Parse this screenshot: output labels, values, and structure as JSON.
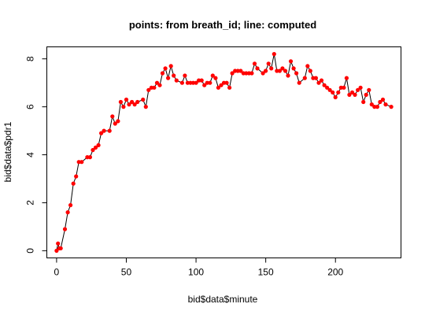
{
  "chart_data": {
    "type": "scatter",
    "title": "points: from breath_id; line: computed",
    "xlabel": "bid$data$minute",
    "ylabel": "bid$data$pdr1",
    "xlim": [
      -7,
      247
    ],
    "ylim": [
      -0.3,
      8.5
    ],
    "xticks": [
      0,
      50,
      100,
      150,
      200
    ],
    "yticks": [
      0,
      2,
      4,
      6,
      8
    ],
    "grid": false,
    "point_color": "#ff0000",
    "line_color": "#000000",
    "series": [
      {
        "style": "points",
        "x": [
          0,
          1,
          2,
          3,
          6,
          8,
          10,
          12,
          14,
          16,
          18,
          22,
          24,
          26,
          28,
          30,
          32,
          34,
          38,
          40,
          42,
          44,
          46,
          48,
          50,
          52,
          54,
          56,
          58,
          62,
          64,
          66,
          68,
          70,
          72,
          74,
          76,
          78,
          80,
          82,
          84,
          86,
          90,
          92,
          94,
          96,
          98,
          100,
          102,
          104,
          106,
          108,
          110,
          112,
          114,
          116,
          118,
          120,
          122,
          124,
          126,
          128,
          130,
          132,
          134,
          136,
          138,
          140,
          142,
          144,
          148,
          150,
          152,
          154,
          156,
          158,
          160,
          162,
          164,
          166,
          168,
          170,
          172,
          174,
          178,
          180,
          182,
          184,
          186,
          188,
          190,
          192,
          194,
          196,
          198,
          200,
          202,
          204,
          206,
          208,
          210,
          212,
          214,
          216,
          218,
          220,
          222,
          224,
          226,
          228,
          230,
          232,
          234,
          236,
          240
        ],
        "y": [
          0.0,
          0.3,
          0.1,
          0.1,
          0.9,
          1.6,
          1.9,
          2.8,
          3.1,
          3.7,
          3.7,
          3.9,
          3.9,
          4.2,
          4.3,
          4.4,
          4.9,
          5.0,
          5.0,
          5.6,
          5.3,
          5.4,
          6.2,
          6.0,
          6.3,
          6.1,
          6.2,
          6.1,
          6.2,
          6.3,
          6.0,
          6.7,
          6.8,
          6.8,
          7.0,
          6.9,
          7.4,
          7.6,
          7.2,
          7.7,
          7.3,
          7.1,
          7.0,
          7.3,
          7.0,
          7.0,
          7.0,
          7.0,
          7.1,
          7.1,
          6.9,
          7.0,
          7.0,
          7.3,
          7.2,
          6.8,
          6.9,
          7.0,
          7.0,
          6.8,
          7.4,
          7.5,
          7.5,
          7.5,
          7.4,
          7.4,
          7.4,
          7.4,
          7.8,
          7.6,
          7.4,
          7.5,
          7.8,
          7.6,
          8.2,
          7.5,
          7.5,
          7.6,
          7.5,
          7.3,
          7.9,
          7.6,
          7.4,
          7.0,
          7.2,
          7.7,
          7.5,
          7.2,
          7.2,
          7.0,
          7.1,
          6.9,
          6.8,
          6.7,
          6.6,
          6.4,
          6.6,
          6.8,
          6.8,
          7.2,
          6.5,
          6.6,
          6.5,
          6.7,
          6.8,
          6.2,
          6.5,
          6.7,
          6.1,
          6.0,
          6.0,
          6.2,
          6.3,
          6.1,
          6.0
        ]
      },
      {
        "style": "line",
        "x": [
          0,
          1,
          2,
          3,
          6,
          8,
          10,
          12,
          14,
          16,
          18,
          22,
          24,
          26,
          28,
          30,
          32,
          34,
          38,
          40,
          42,
          44,
          46,
          48,
          50,
          52,
          54,
          56,
          58,
          62,
          64,
          66,
          68,
          70,
          72,
          74,
          76,
          78,
          80,
          82,
          84,
          86,
          90,
          92,
          94,
          96,
          98,
          100,
          102,
          104,
          106,
          108,
          110,
          112,
          114,
          116,
          118,
          120,
          122,
          124,
          126,
          128,
          130,
          132,
          134,
          136,
          138,
          140,
          142,
          144,
          148,
          150,
          152,
          154,
          156,
          158,
          160,
          162,
          164,
          166,
          168,
          170,
          172,
          174,
          178,
          180,
          182,
          184,
          186,
          188,
          190,
          192,
          194,
          196,
          198,
          200,
          202,
          204,
          206,
          208,
          210,
          212,
          214,
          216,
          218,
          220,
          222,
          224,
          226,
          228,
          230,
          232,
          234,
          236,
          240
        ],
        "y": [
          0.0,
          0.3,
          0.1,
          0.1,
          0.9,
          1.6,
          1.9,
          2.8,
          3.1,
          3.7,
          3.7,
          3.9,
          3.9,
          4.2,
          4.3,
          4.4,
          4.9,
          5.0,
          5.0,
          5.6,
          5.3,
          5.4,
          6.2,
          6.0,
          6.3,
          6.1,
          6.2,
          6.1,
          6.2,
          6.3,
          6.0,
          6.7,
          6.8,
          6.8,
          7.0,
          6.9,
          7.4,
          7.6,
          7.2,
          7.7,
          7.3,
          7.1,
          7.0,
          7.3,
          7.0,
          7.0,
          7.0,
          7.0,
          7.1,
          7.1,
          6.9,
          7.0,
          7.0,
          7.3,
          7.2,
          6.8,
          6.9,
          7.0,
          7.0,
          6.8,
          7.4,
          7.5,
          7.5,
          7.5,
          7.4,
          7.4,
          7.4,
          7.4,
          7.8,
          7.6,
          7.4,
          7.5,
          7.8,
          7.6,
          8.2,
          7.5,
          7.5,
          7.6,
          7.5,
          7.3,
          7.9,
          7.6,
          7.4,
          7.0,
          7.2,
          7.7,
          7.5,
          7.2,
          7.2,
          7.0,
          7.1,
          6.9,
          6.8,
          6.7,
          6.6,
          6.4,
          6.6,
          6.8,
          6.8,
          7.2,
          6.5,
          6.6,
          6.5,
          6.7,
          6.8,
          6.2,
          6.5,
          6.7,
          6.1,
          6.0,
          6.0,
          6.2,
          6.3,
          6.1,
          6.0
        ]
      }
    ]
  }
}
